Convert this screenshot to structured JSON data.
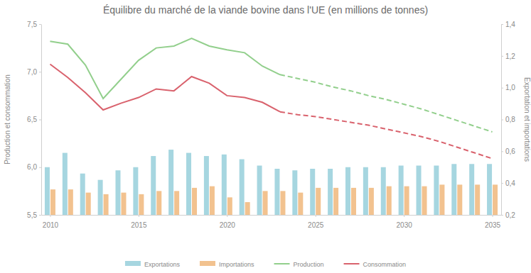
{
  "chart_data": {
    "type": "combo",
    "title": "Équilibre du marché de la viande bovine dans l'UE (en millions de tonnes)",
    "y_label": "Production et consommation",
    "y2_label": "Exportation et importations",
    "x": [
      2010,
      2011,
      2012,
      2013,
      2014,
      2015,
      2016,
      2017,
      2018,
      2019,
      2020,
      2021,
      2022,
      2023,
      2024,
      2025,
      2026,
      2027,
      2028,
      2029,
      2030,
      2031,
      2032,
      2033,
      2034,
      2035
    ],
    "xlim": [
      2009.5,
      2035.5
    ],
    "xticks": [
      2010,
      2015,
      2020,
      2025,
      2030,
      2035
    ],
    "ylim": [
      5.5,
      7.5
    ],
    "yticks": [
      {
        "value": 5.5,
        "label": "5,5"
      },
      {
        "value": 6.0,
        "label": "6,0"
      },
      {
        "value": 6.5,
        "label": "6,5"
      },
      {
        "value": 7.0,
        "label": "7,0"
      },
      {
        "value": 7.5,
        "label": "7,5"
      }
    ],
    "y2lim": [
      0.2,
      1.4
    ],
    "y2ticks": [
      {
        "value": 0.2,
        "label": "0,2"
      },
      {
        "value": 0.4,
        "label": "0,4"
      },
      {
        "value": 0.6,
        "label": "0,6"
      },
      {
        "value": 0.8,
        "label": "0,8"
      },
      {
        "value": 1.0,
        "label": "1,0"
      },
      {
        "value": 1.2,
        "label": "1,2"
      },
      {
        "value": 1.4,
        "label": "1,4"
      }
    ],
    "grid": false,
    "legend": "bottom",
    "series": [
      {
        "name": "Exportations",
        "type": "bar",
        "axis": "y2",
        "color": "#a6d6e0",
        "values": [
          0.5,
          0.59,
          0.46,
          0.42,
          0.48,
          0.5,
          0.57,
          0.61,
          0.59,
          0.57,
          0.58,
          0.55,
          0.51,
          0.49,
          0.48,
          0.49,
          0.49,
          0.5,
          0.5,
          0.5,
          0.51,
          0.51,
          0.51,
          0.52,
          0.52,
          0.52
        ]
      },
      {
        "name": "Importations",
        "type": "bar",
        "axis": "y2",
        "color": "#f2c28f",
        "values": [
          0.36,
          0.36,
          0.34,
          0.33,
          0.34,
          0.33,
          0.35,
          0.35,
          0.37,
          0.38,
          0.31,
          0.28,
          0.35,
          0.35,
          0.34,
          0.37,
          0.37,
          0.37,
          0.37,
          0.38,
          0.38,
          0.38,
          0.39,
          0.39,
          0.39,
          0.39
        ]
      },
      {
        "name": "Production",
        "type": "line",
        "color": "#92cf8c",
        "line_style": "solid",
        "values": [
          7.32,
          7.29,
          7.07,
          6.72,
          6.92,
          7.12,
          7.25,
          7.27,
          7.35,
          7.27,
          7.23,
          7.2,
          7.06,
          6.97,
          null,
          null,
          null,
          null,
          null,
          null,
          null,
          null,
          null,
          null,
          null,
          null
        ]
      },
      {
        "name": "Consommation",
        "type": "line",
        "color": "#d9626d",
        "line_style": "solid",
        "values": [
          7.08,
          6.94,
          6.78,
          6.6,
          6.67,
          6.73,
          6.82,
          6.8,
          6.95,
          6.88,
          6.75,
          6.73,
          6.68,
          6.58,
          null,
          null,
          null,
          null,
          null,
          null,
          null,
          null,
          null,
          null,
          null,
          null
        ]
      },
      {
        "name": "Production",
        "type": "line",
        "color": "#92cf8c",
        "line_style": "dashed",
        "values": [
          null,
          null,
          null,
          null,
          null,
          null,
          null,
          null,
          null,
          null,
          null,
          null,
          null,
          6.97,
          6.93,
          6.89,
          6.84,
          6.8,
          6.75,
          6.71,
          6.66,
          6.61,
          6.55,
          6.49,
          6.43,
          6.37
        ]
      },
      {
        "name": "Consommation",
        "type": "line",
        "color": "#d9626d",
        "line_style": "dashed",
        "values": [
          null,
          null,
          null,
          null,
          null,
          null,
          null,
          null,
          null,
          null,
          null,
          null,
          null,
          6.58,
          6.55,
          6.53,
          6.5,
          6.47,
          6.44,
          6.4,
          6.36,
          6.32,
          6.27,
          6.21,
          6.15,
          6.09
        ]
      }
    ]
  }
}
